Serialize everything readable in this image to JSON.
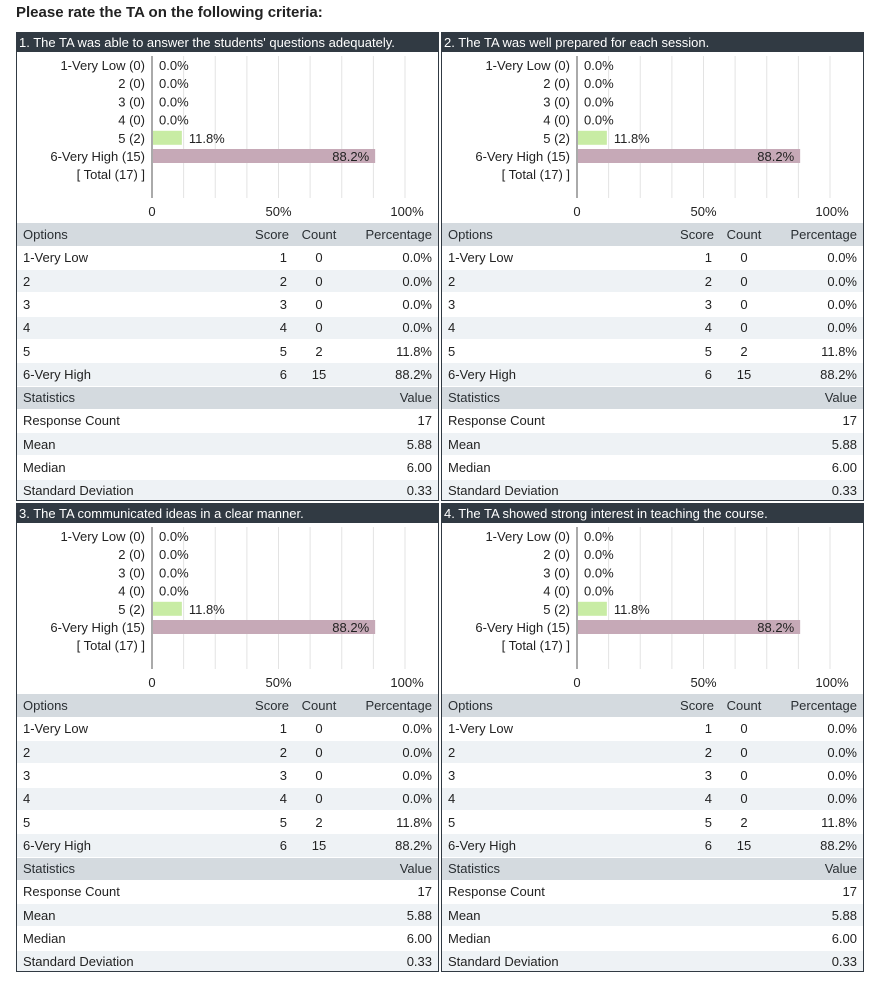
{
  "page": {
    "title": "Please rate the TA on the following criteria:"
  },
  "table_headers": {
    "options": "Options",
    "score": "Score",
    "count": "Count",
    "percentage": "Percentage",
    "statistics": "Statistics",
    "value": "Value"
  },
  "axis_ticks": [
    "0",
    "50%",
    "100%"
  ],
  "colors": {
    "header_bg": "#313a43",
    "bar_green": "#c8eca4",
    "bar_mauve": "#c6a9b7",
    "grid": "#e3e3e3"
  },
  "panels": [
    {
      "title": "1. The TA was able to answer the students' questions adequately.",
      "rows": [
        {
          "option": "1-Very Low",
          "score": "1",
          "count": "0",
          "pct": "0.0%"
        },
        {
          "option": "2",
          "score": "2",
          "count": "0",
          "pct": "0.0%"
        },
        {
          "option": "3",
          "score": "3",
          "count": "0",
          "pct": "0.0%"
        },
        {
          "option": "4",
          "score": "4",
          "count": "0",
          "pct": "0.0%"
        },
        {
          "option": "5",
          "score": "5",
          "count": "2",
          "pct": "11.8%"
        },
        {
          "option": "6-Very High",
          "score": "6",
          "count": "15",
          "pct": "88.2%"
        }
      ],
      "stats": [
        {
          "label": "Response Count",
          "value": "17"
        },
        {
          "label": "Mean",
          "value": "5.88"
        },
        {
          "label": "Median",
          "value": "6.00"
        },
        {
          "label": "Standard Deviation",
          "value": "0.33"
        }
      ]
    },
    {
      "title": "2. The TA was well prepared for each session.",
      "rows": [
        {
          "option": "1-Very Low",
          "score": "1",
          "count": "0",
          "pct": "0.0%"
        },
        {
          "option": "2",
          "score": "2",
          "count": "0",
          "pct": "0.0%"
        },
        {
          "option": "3",
          "score": "3",
          "count": "0",
          "pct": "0.0%"
        },
        {
          "option": "4",
          "score": "4",
          "count": "0",
          "pct": "0.0%"
        },
        {
          "option": "5",
          "score": "5",
          "count": "2",
          "pct": "11.8%"
        },
        {
          "option": "6-Very High",
          "score": "6",
          "count": "15",
          "pct": "88.2%"
        }
      ],
      "stats": [
        {
          "label": "Response Count",
          "value": "17"
        },
        {
          "label": "Mean",
          "value": "5.88"
        },
        {
          "label": "Median",
          "value": "6.00"
        },
        {
          "label": "Standard Deviation",
          "value": "0.33"
        }
      ]
    },
    {
      "title": "3. The TA communicated ideas in a clear manner.",
      "rows": [
        {
          "option": "1-Very Low",
          "score": "1",
          "count": "0",
          "pct": "0.0%"
        },
        {
          "option": "2",
          "score": "2",
          "count": "0",
          "pct": "0.0%"
        },
        {
          "option": "3",
          "score": "3",
          "count": "0",
          "pct": "0.0%"
        },
        {
          "option": "4",
          "score": "4",
          "count": "0",
          "pct": "0.0%"
        },
        {
          "option": "5",
          "score": "5",
          "count": "2",
          "pct": "11.8%"
        },
        {
          "option": "6-Very High",
          "score": "6",
          "count": "15",
          "pct": "88.2%"
        }
      ],
      "stats": [
        {
          "label": "Response Count",
          "value": "17"
        },
        {
          "label": "Mean",
          "value": "5.88"
        },
        {
          "label": "Median",
          "value": "6.00"
        },
        {
          "label": "Standard Deviation",
          "value": "0.33"
        }
      ]
    },
    {
      "title": "4. The TA showed strong interest in teaching the course.",
      "rows": [
        {
          "option": "1-Very Low",
          "score": "1",
          "count": "0",
          "pct": "0.0%"
        },
        {
          "option": "2",
          "score": "2",
          "count": "0",
          "pct": "0.0%"
        },
        {
          "option": "3",
          "score": "3",
          "count": "0",
          "pct": "0.0%"
        },
        {
          "option": "4",
          "score": "4",
          "count": "0",
          "pct": "0.0%"
        },
        {
          "option": "5",
          "score": "5",
          "count": "2",
          "pct": "11.8%"
        },
        {
          "option": "6-Very High",
          "score": "6",
          "count": "15",
          "pct": "88.2%"
        }
      ],
      "stats": [
        {
          "label": "Response Count",
          "value": "17"
        },
        {
          "label": "Mean",
          "value": "5.88"
        },
        {
          "label": "Median",
          "value": "6.00"
        },
        {
          "label": "Standard Deviation",
          "value": "0.33"
        }
      ]
    }
  ],
  "chart_data": [
    {
      "type": "bar",
      "orientation": "horizontal",
      "categories": [
        "1-Very Low (0)",
        "2 (0)",
        "3 (0)",
        "4 (0)",
        "5 (2)",
        "6-Very High (15)"
      ],
      "values": [
        0.0,
        0.0,
        0.0,
        0.0,
        11.8,
        88.2
      ],
      "value_labels": [
        "0.0%",
        "0.0%",
        "0.0%",
        "0.0%",
        "11.8%",
        "88.2%"
      ],
      "bar_colors": [
        "#c8eca4",
        "#c8eca4",
        "#c8eca4",
        "#c8eca4",
        "#c8eca4",
        "#c6a9b7"
      ],
      "total_label": "[ Total (17) ]",
      "xlim": [
        0,
        100
      ],
      "grid": true
    },
    {
      "type": "bar",
      "orientation": "horizontal",
      "categories": [
        "1-Very Low (0)",
        "2 (0)",
        "3 (0)",
        "4 (0)",
        "5 (2)",
        "6-Very High (15)"
      ],
      "values": [
        0.0,
        0.0,
        0.0,
        0.0,
        11.8,
        88.2
      ],
      "value_labels": [
        "0.0%",
        "0.0%",
        "0.0%",
        "0.0%",
        "11.8%",
        "88.2%"
      ],
      "bar_colors": [
        "#c8eca4",
        "#c8eca4",
        "#c8eca4",
        "#c8eca4",
        "#c8eca4",
        "#c6a9b7"
      ],
      "total_label": "[ Total (17) ]",
      "xlim": [
        0,
        100
      ],
      "grid": true
    },
    {
      "type": "bar",
      "orientation": "horizontal",
      "categories": [
        "1-Very Low (0)",
        "2 (0)",
        "3 (0)",
        "4 (0)",
        "5 (2)",
        "6-Very High (15)"
      ],
      "values": [
        0.0,
        0.0,
        0.0,
        0.0,
        11.8,
        88.2
      ],
      "value_labels": [
        "0.0%",
        "0.0%",
        "0.0%",
        "0.0%",
        "11.8%",
        "88.2%"
      ],
      "bar_colors": [
        "#c8eca4",
        "#c8eca4",
        "#c8eca4",
        "#c8eca4",
        "#c8eca4",
        "#c6a9b7"
      ],
      "total_label": "[ Total (17) ]",
      "xlim": [
        0,
        100
      ],
      "grid": true
    },
    {
      "type": "bar",
      "orientation": "horizontal",
      "categories": [
        "1-Very Low (0)",
        "2 (0)",
        "3 (0)",
        "4 (0)",
        "5 (2)",
        "6-Very High (15)"
      ],
      "values": [
        0.0,
        0.0,
        0.0,
        0.0,
        11.8,
        88.2
      ],
      "value_labels": [
        "0.0%",
        "0.0%",
        "0.0%",
        "0.0%",
        "11.8%",
        "88.2%"
      ],
      "bar_colors": [
        "#c8eca4",
        "#c8eca4",
        "#c8eca4",
        "#c8eca4",
        "#c8eca4",
        "#c6a9b7"
      ],
      "total_label": "[ Total (17) ]",
      "xlim": [
        0,
        100
      ],
      "grid": true
    }
  ]
}
